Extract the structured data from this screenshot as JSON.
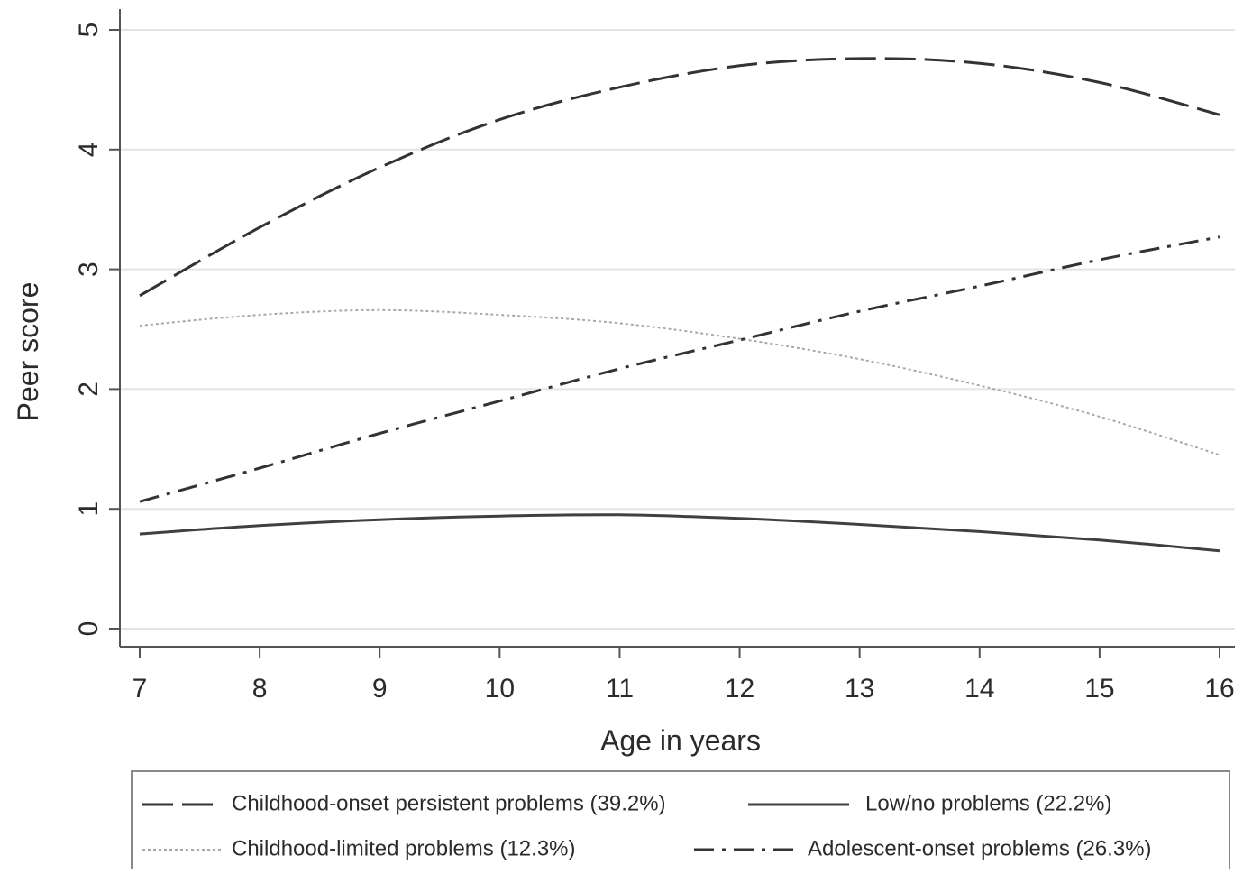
{
  "chart_data": {
    "type": "line",
    "title": "",
    "xlabel": "Age in years",
    "ylabel": "Peer score",
    "xlim": [
      7,
      16
    ],
    "ylim": [
      0,
      5
    ],
    "x_ticks": [
      7,
      8,
      9,
      10,
      11,
      12,
      13,
      14,
      15,
      16
    ],
    "y_ticks": [
      0,
      1,
      2,
      3,
      4,
      5
    ],
    "grid": "horizontal",
    "legend_position": "bottom",
    "x": [
      7,
      8,
      9,
      10,
      11,
      12,
      13,
      14,
      15,
      16
    ],
    "series": [
      {
        "name": "Childhood-onset persistent problems (39.2%)",
        "style": "long-dash",
        "color": "#333333",
        "values": [
          2.78,
          3.35,
          3.85,
          4.25,
          4.52,
          4.7,
          4.76,
          4.72,
          4.56,
          4.29
        ]
      },
      {
        "name": "Low/no problems (22.2%)",
        "style": "solid",
        "color": "#404040",
        "values": [
          0.79,
          0.86,
          0.91,
          0.94,
          0.95,
          0.92,
          0.87,
          0.81,
          0.74,
          0.65
        ]
      },
      {
        "name": "Childhood-limited problems (12.3%)",
        "style": "dotted",
        "color": "#a8a8a8",
        "values": [
          2.53,
          2.62,
          2.66,
          2.62,
          2.55,
          2.42,
          2.25,
          2.03,
          1.77,
          1.45
        ]
      },
      {
        "name": "Adolescent-onset problems (26.3%)",
        "style": "dash-dot",
        "color": "#333333",
        "values": [
          1.06,
          1.34,
          1.63,
          1.9,
          2.17,
          2.41,
          2.65,
          2.86,
          3.08,
          3.27
        ]
      }
    ]
  }
}
